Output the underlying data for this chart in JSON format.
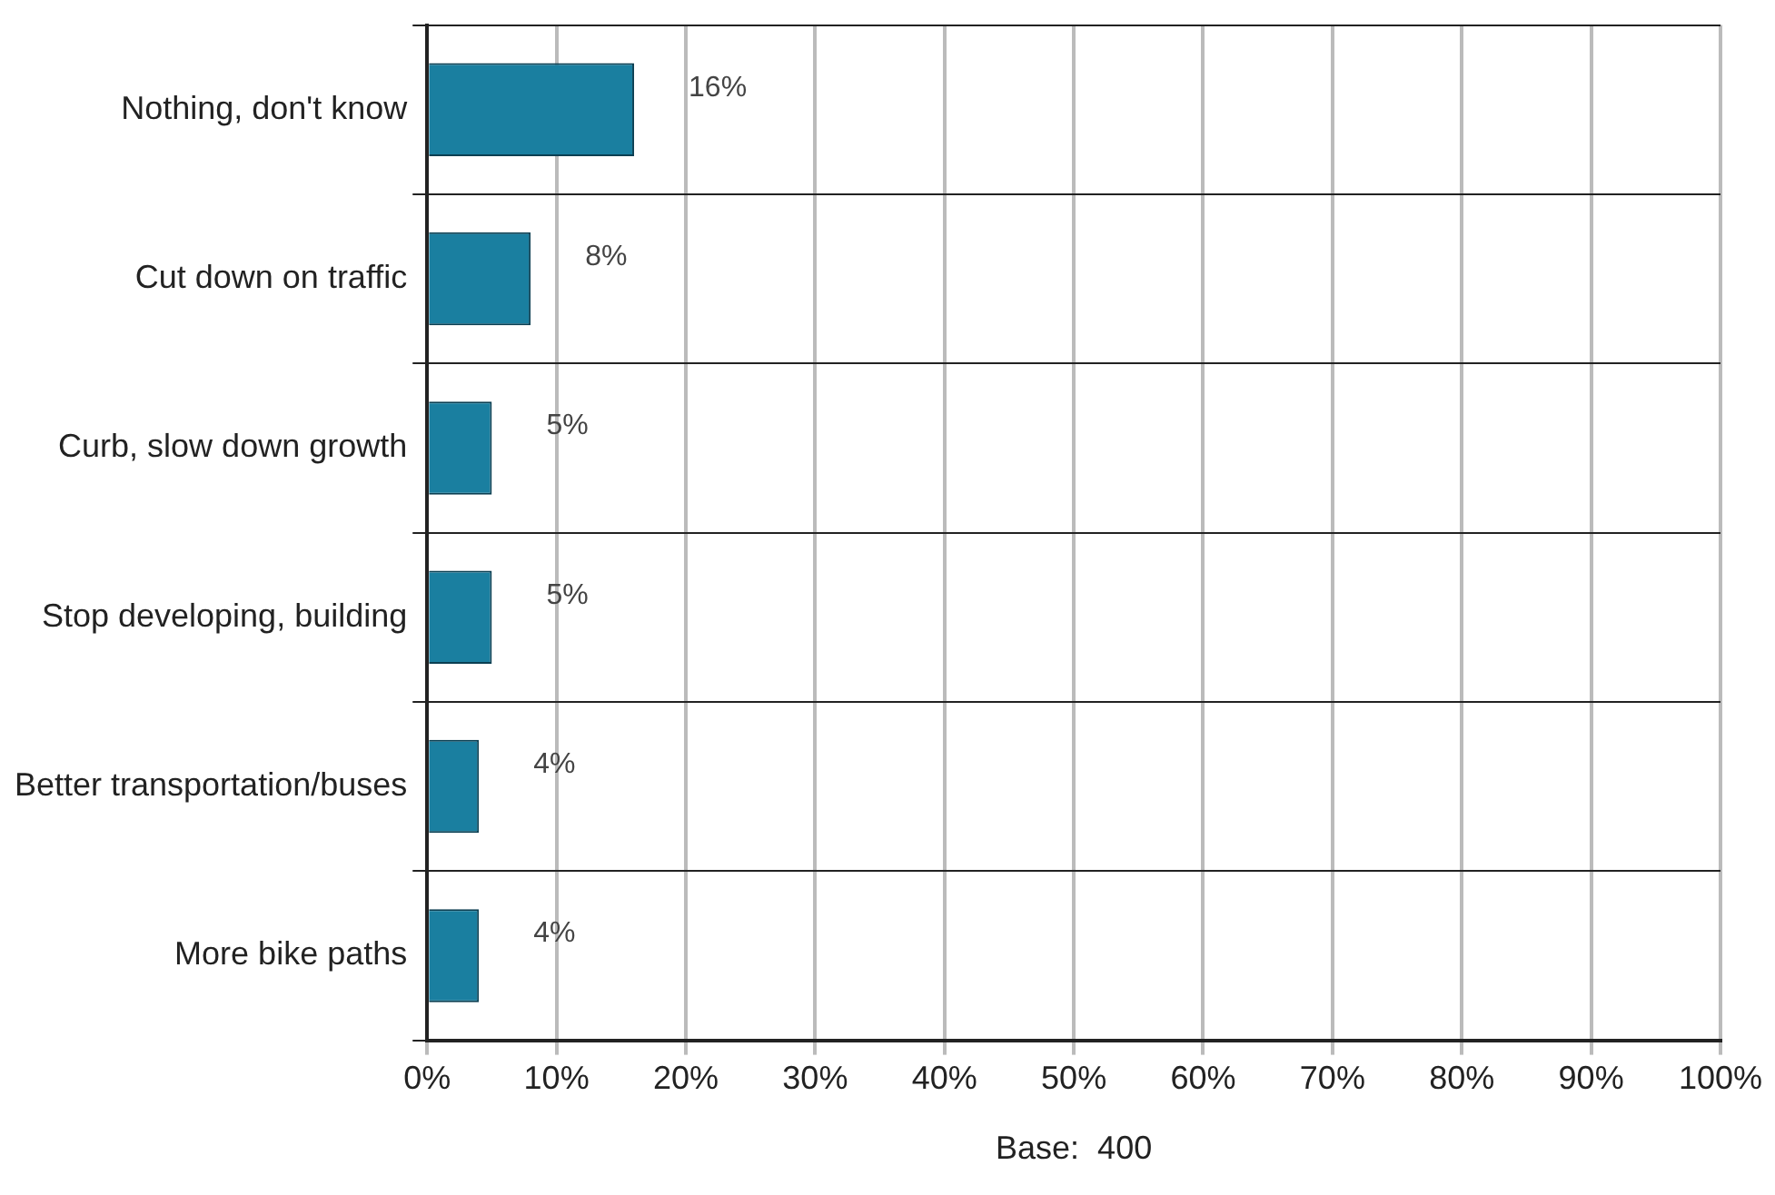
{
  "chart_data": {
    "type": "bar",
    "orientation": "horizontal",
    "categories": [
      "Nothing, don't know",
      "Cut down on traffic",
      "Curb, slow down growth",
      "Stop developing, building",
      "Better transportation/buses",
      "More bike paths"
    ],
    "values": [
      16,
      8,
      5,
      5,
      4,
      4
    ],
    "value_labels": [
      "16%",
      "8%",
      "5%",
      "5%",
      "4%",
      "4%"
    ],
    "color": "#1a7fa0",
    "xlabel": "Base:  400",
    "xlim": [
      0,
      100
    ],
    "xticks": [
      {
        "value": 0,
        "label": "0%"
      },
      {
        "value": 10,
        "label": "10%"
      },
      {
        "value": 20,
        "label": "20%"
      },
      {
        "value": 30,
        "label": "30%"
      },
      {
        "value": 40,
        "label": "40%"
      },
      {
        "value": 50,
        "label": "50%"
      },
      {
        "value": 60,
        "label": "60%"
      },
      {
        "value": 70,
        "label": "70%"
      },
      {
        "value": 80,
        "label": "80%"
      },
      {
        "value": 90,
        "label": "90%"
      },
      {
        "value": 100,
        "label": "100%"
      }
    ],
    "grid": true,
    "legend": false
  }
}
